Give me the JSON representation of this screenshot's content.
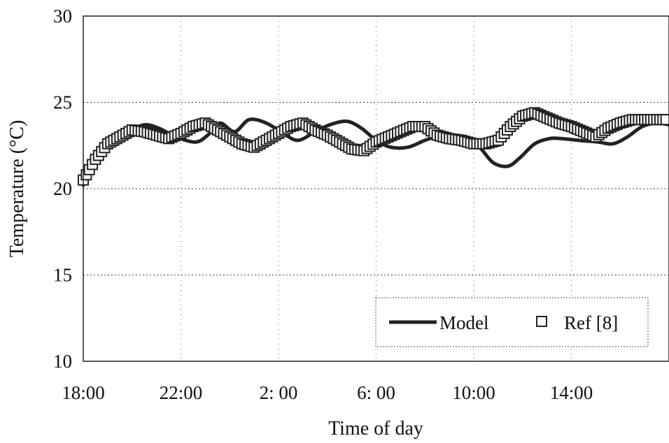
{
  "chart_data": {
    "type": "line",
    "xlabel": "Time of day",
    "ylabel": "Temperature (°C)",
    "ylim": [
      10,
      30
    ],
    "yticks": [
      "10",
      "15",
      "20",
      "25",
      "30"
    ],
    "xlim": [
      18,
      42
    ],
    "xticks": [
      {
        "value": 18,
        "label": "18:00"
      },
      {
        "value": 22,
        "label": "22:00"
      },
      {
        "value": 26,
        "label": "2: 00"
      },
      {
        "value": 30,
        "label": "6: 00"
      },
      {
        "value": 34,
        "label": "10:00"
      },
      {
        "value": 38,
        "label": "14:00"
      }
    ],
    "grid": "horizontal dotted at 15, 20, 25; vertical dotted at each x tick",
    "legend_position": "bottom-right",
    "series": [
      {
        "name": "Model",
        "style": "solid line",
        "color": "#222222",
        "x": [
          18.0,
          18.3,
          18.8,
          19.3,
          19.9,
          20.5,
          21.1,
          21.8,
          22.6,
          23.1,
          23.6,
          24.2,
          24.8,
          25.5,
          26.2,
          26.8,
          27.5,
          28.1,
          28.8,
          29.4,
          30.0,
          30.6,
          31.3,
          32.0,
          32.7,
          33.2,
          33.6,
          34.0,
          34.3,
          34.8,
          35.4,
          35.9,
          36.5,
          37.1,
          37.6,
          38.3,
          39.1,
          39.7,
          40.3,
          40.9,
          41.5,
          42.0
        ],
        "y": [
          20.2,
          21.0,
          22.1,
          22.7,
          23.3,
          23.7,
          23.5,
          23.0,
          22.7,
          23.1,
          23.8,
          23.3,
          24.0,
          23.8,
          23.2,
          22.8,
          23.3,
          23.7,
          23.9,
          23.5,
          22.8,
          22.4,
          22.4,
          22.8,
          23.1,
          22.9,
          22.6,
          22.5,
          22.3,
          21.5,
          21.3,
          21.8,
          22.6,
          22.9,
          22.9,
          22.8,
          22.7,
          22.6,
          23.0,
          23.6,
          23.8,
          23.7
        ]
      },
      {
        "name": "Ref [8]",
        "style": "hollow square markers",
        "color": "#222222",
        "x": [
          18.0,
          18.5,
          19.0,
          19.5,
          20.0,
          20.5,
          21.0,
          21.5,
          22.0,
          22.5,
          23.0,
          23.5,
          24.0,
          24.5,
          25.0,
          25.5,
          26.0,
          26.5,
          27.0,
          27.5,
          28.0,
          28.5,
          29.0,
          29.5,
          30.0,
          30.5,
          31.0,
          31.5,
          32.0,
          32.5,
          33.0,
          33.5,
          34.0,
          34.5,
          35.0,
          35.5,
          36.0,
          36.5,
          37.0,
          37.5,
          38.0,
          38.5,
          39.0,
          39.5,
          40.0,
          40.5,
          41.0,
          41.5,
          42.0
        ],
        "y": [
          20.5,
          21.7,
          22.6,
          23.0,
          23.4,
          23.3,
          23.1,
          22.9,
          23.2,
          23.6,
          23.8,
          23.4,
          23.0,
          22.6,
          22.4,
          22.8,
          23.2,
          23.6,
          23.8,
          23.4,
          23.1,
          22.7,
          22.3,
          22.2,
          22.7,
          23.0,
          23.3,
          23.6,
          23.6,
          23.1,
          22.9,
          22.8,
          22.6,
          22.6,
          22.8,
          23.6,
          24.2,
          24.4,
          24.1,
          23.8,
          23.6,
          23.3,
          23.0,
          23.5,
          23.8,
          24.0,
          24.0,
          24.0,
          24.0
        ]
      }
    ]
  }
}
